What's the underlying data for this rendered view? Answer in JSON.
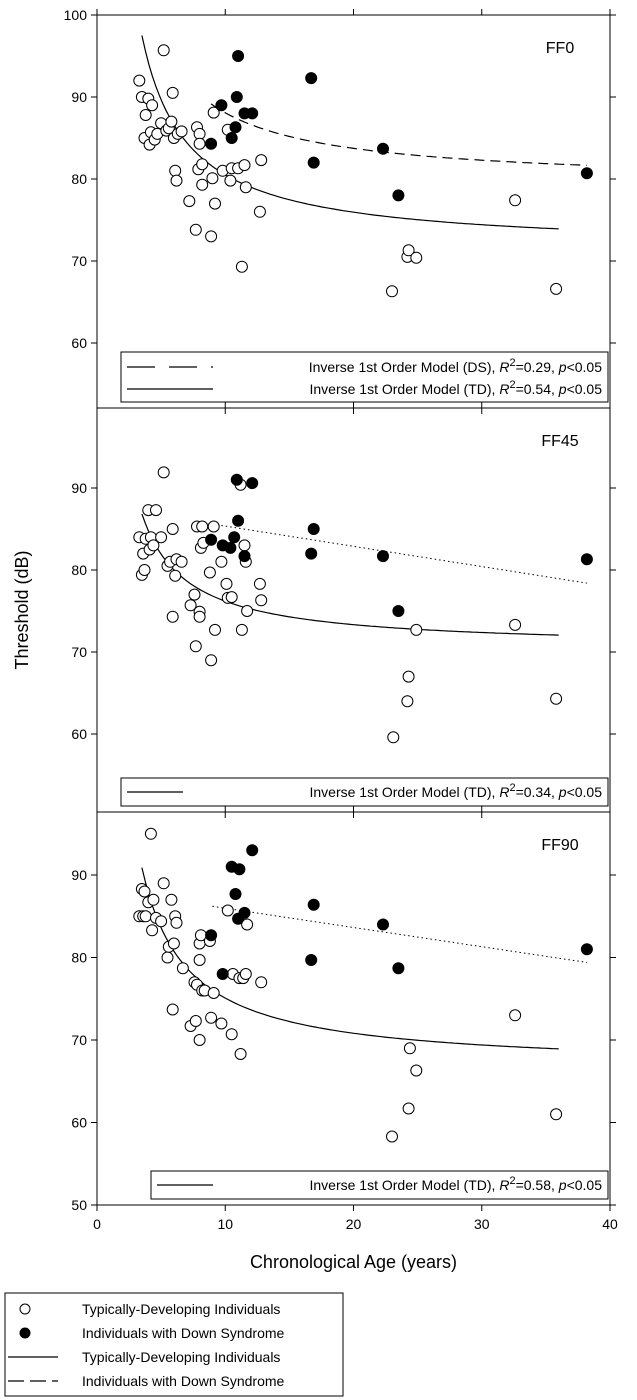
{
  "chart_data": {
    "type": "scatter",
    "ylabel": "Threshold (dB)",
    "xlabel": "Chronological Age (years)",
    "xlim": [
      0,
      40
    ],
    "x_ticks": [
      "0",
      "10",
      "20",
      "30",
      "40"
    ],
    "panels": [
      {
        "title": "FF0",
        "ylim": [
          50,
          100
        ],
        "y_ticks": [
          "100",
          "90",
          "80",
          "70",
          "60"
        ],
        "td_points": [
          [
            3.3,
            92.0
          ],
          [
            3.5,
            90.0
          ],
          [
            3.7,
            85.0
          ],
          [
            3.8,
            87.8
          ],
          [
            4.0,
            89.8
          ],
          [
            4.1,
            84.2
          ],
          [
            4.2,
            85.7
          ],
          [
            4.3,
            89.0
          ],
          [
            4.5,
            84.8
          ],
          [
            4.7,
            85.5
          ],
          [
            5.0,
            86.8
          ],
          [
            5.2,
            95.7
          ],
          [
            5.4,
            85.9
          ],
          [
            5.6,
            86.2
          ],
          [
            5.8,
            87.0
          ],
          [
            5.9,
            90.5
          ],
          [
            6.0,
            85.0
          ],
          [
            6.1,
            81.0
          ],
          [
            6.2,
            79.8
          ],
          [
            6.3,
            85.5
          ],
          [
            6.6,
            85.8
          ],
          [
            7.2,
            77.3
          ],
          [
            7.7,
            73.8
          ],
          [
            7.8,
            86.3
          ],
          [
            7.9,
            81.2
          ],
          [
            8.0,
            85.5
          ],
          [
            8.0,
            84.3
          ],
          [
            8.2,
            81.8
          ],
          [
            8.2,
            79.3
          ],
          [
            8.9,
            73.0
          ],
          [
            9.0,
            80.1
          ],
          [
            9.1,
            88.1
          ],
          [
            9.2,
            77.0
          ],
          [
            9.8,
            81.0
          ],
          [
            10.2,
            86.0
          ],
          [
            10.4,
            79.8
          ],
          [
            10.5,
            81.3
          ],
          [
            11.0,
            81.3
          ],
          [
            11.3,
            69.3
          ],
          [
            11.5,
            81.7
          ],
          [
            11.6,
            79.0
          ],
          [
            12.7,
            76.0
          ],
          [
            12.8,
            82.3
          ],
          [
            23.0,
            66.3
          ],
          [
            24.2,
            70.5
          ],
          [
            24.3,
            71.3
          ],
          [
            24.9,
            70.4
          ],
          [
            32.6,
            77.4
          ],
          [
            35.8,
            66.6
          ]
        ],
        "ds_points": [
          [
            8.9,
            84.3
          ],
          [
            9.7,
            89.0
          ],
          [
            10.5,
            85.0
          ],
          [
            10.8,
            86.3
          ],
          [
            10.9,
            90.0
          ],
          [
            11.0,
            95.0
          ],
          [
            11.5,
            88.0
          ],
          [
            12.1,
            88.0
          ],
          [
            16.7,
            92.3
          ],
          [
            16.9,
            82.0
          ],
          [
            22.3,
            83.7
          ],
          [
            23.5,
            78.0
          ],
          [
            38.2,
            80.7
          ]
        ],
        "fits": [
          {
            "model": "TD",
            "style": "solid",
            "x_range": [
              3.5,
              36
            ],
            "a": 71.38,
            "b": 91.4
          },
          {
            "model": "DS",
            "style": "dashed",
            "x_range": [
              8.9,
              38.2
            ],
            "a": 79.4,
            "b": 86.8
          }
        ],
        "legend": [
          {
            "style": "dashed",
            "label": "Inverse 1st Order Model (DS), ",
            "r2_label": "R",
            "r2_sup": "2",
            "r2_value": "=0.29, ",
            "p_label": "p",
            "p_value": "<0.05"
          },
          {
            "style": "solid",
            "label": "Inverse 1st Order Model (TD), ",
            "r2_label": "R",
            "r2_sup": "2",
            "r2_value": "=0.54, ",
            "p_label": "p",
            "p_value": "<0.05"
          }
        ]
      },
      {
        "title": "FF45",
        "ylim": [
          50,
          100
        ],
        "y_ticks": [
          "90",
          "80",
          "70",
          "60"
        ],
        "td_points": [
          [
            3.3,
            84.0
          ],
          [
            3.5,
            79.4
          ],
          [
            3.6,
            82.0
          ],
          [
            3.7,
            80.0
          ],
          [
            3.8,
            83.8
          ],
          [
            4.0,
            87.3
          ],
          [
            4.1,
            82.5
          ],
          [
            4.2,
            84.0
          ],
          [
            4.4,
            83.0
          ],
          [
            4.6,
            87.3
          ],
          [
            5.0,
            84.0
          ],
          [
            5.2,
            91.9
          ],
          [
            5.5,
            80.5
          ],
          [
            5.7,
            81.0
          ],
          [
            5.9,
            85.0
          ],
          [
            5.9,
            74.3
          ],
          [
            6.1,
            79.3
          ],
          [
            6.2,
            81.3
          ],
          [
            6.6,
            81.0
          ],
          [
            7.3,
            75.7
          ],
          [
            7.6,
            77.0
          ],
          [
            7.7,
            70.7
          ],
          [
            7.8,
            85.3
          ],
          [
            8.0,
            74.9
          ],
          [
            8.0,
            74.3
          ],
          [
            8.1,
            82.7
          ],
          [
            8.2,
            85.3
          ],
          [
            8.3,
            83.3
          ],
          [
            8.8,
            79.7
          ],
          [
            8.9,
            69.0
          ],
          [
            9.1,
            85.3
          ],
          [
            9.2,
            72.7
          ],
          [
            9.7,
            81.0
          ],
          [
            10.1,
            78.3
          ],
          [
            10.2,
            76.6
          ],
          [
            10.5,
            76.7
          ],
          [
            11.2,
            90.4
          ],
          [
            11.3,
            72.7
          ],
          [
            11.5,
            83.0
          ],
          [
            11.6,
            81.0
          ],
          [
            11.7,
            75.0
          ],
          [
            12.7,
            78.3
          ],
          [
            12.8,
            76.3
          ],
          [
            23.1,
            59.6
          ],
          [
            24.2,
            64.0
          ],
          [
            24.3,
            67.0
          ],
          [
            24.9,
            72.7
          ],
          [
            32.6,
            73.3
          ],
          [
            35.8,
            64.3
          ]
        ],
        "ds_points": [
          [
            8.9,
            83.7
          ],
          [
            9.8,
            83.0
          ],
          [
            10.4,
            82.7
          ],
          [
            10.7,
            84.0
          ],
          [
            10.9,
            91.0
          ],
          [
            11.0,
            86.0
          ],
          [
            11.5,
            81.7
          ],
          [
            12.1,
            90.6
          ],
          [
            16.7,
            82.0
          ],
          [
            16.9,
            85.0
          ],
          [
            22.3,
            81.7
          ],
          [
            23.5,
            75.0
          ],
          [
            38.2,
            81.3
          ]
        ],
        "fits": [
          {
            "model": "TD",
            "style": "solid",
            "x_range": [
              3.5,
              36
            ],
            "a": 70.47,
            "b": 57.3
          },
          {
            "model": "DS",
            "style": "dotted",
            "x_range": [
              9.0,
              38.2
            ],
            "line": [
              85.6,
              78.4
            ]
          }
        ],
        "legend": [
          {
            "style": "solid",
            "label": "Inverse 1st Order Model (TD), ",
            "r2_label": "R",
            "r2_sup": "2",
            "r2_value": "=0.34, ",
            "p_label": "p",
            "p_value": "<0.05"
          }
        ]
      },
      {
        "title": "FF90",
        "ylim": [
          50,
          100
        ],
        "y_ticks": [
          "90",
          "80",
          "70",
          "60",
          "50"
        ],
        "td_points": [
          [
            3.3,
            85.0
          ],
          [
            3.5,
            88.3
          ],
          [
            3.6,
            85.0
          ],
          [
            3.7,
            88.0
          ],
          [
            3.8,
            85.0
          ],
          [
            4.0,
            86.7
          ],
          [
            4.2,
            95.0
          ],
          [
            4.3,
            83.3
          ],
          [
            4.4,
            87.0
          ],
          [
            4.6,
            84.8
          ],
          [
            5.0,
            84.4
          ],
          [
            5.2,
            89.0
          ],
          [
            5.5,
            80.0
          ],
          [
            5.6,
            81.3
          ],
          [
            5.8,
            87.0
          ],
          [
            5.9,
            73.7
          ],
          [
            6.0,
            81.7
          ],
          [
            6.1,
            85.0
          ],
          [
            6.2,
            84.2
          ],
          [
            6.7,
            78.7
          ],
          [
            7.3,
            71.7
          ],
          [
            7.6,
            77.0
          ],
          [
            7.7,
            72.3
          ],
          [
            7.8,
            76.7
          ],
          [
            8.0,
            70.0
          ],
          [
            8.0,
            79.7
          ],
          [
            8.0,
            81.7
          ],
          [
            8.1,
            82.7
          ],
          [
            8.2,
            76.0
          ],
          [
            8.4,
            76.0
          ],
          [
            8.8,
            82.0
          ],
          [
            8.9,
            72.7
          ],
          [
            9.1,
            75.7
          ],
          [
            9.7,
            72.0
          ],
          [
            10.2,
            85.7
          ],
          [
            10.5,
            70.7
          ],
          [
            10.6,
            78.0
          ],
          [
            11.1,
            77.5
          ],
          [
            11.2,
            68.3
          ],
          [
            11.4,
            77.5
          ],
          [
            11.6,
            78.0
          ],
          [
            11.7,
            84.0
          ],
          [
            12.8,
            77.0
          ],
          [
            23.0,
            58.3
          ],
          [
            24.3,
            61.7
          ],
          [
            24.4,
            69.0
          ],
          [
            24.9,
            66.3
          ],
          [
            32.6,
            73.0
          ],
          [
            35.8,
            61.0
          ]
        ],
        "ds_points": [
          [
            8.9,
            82.7
          ],
          [
            9.8,
            78.0
          ],
          [
            10.5,
            91.0
          ],
          [
            10.8,
            87.7
          ],
          [
            11.1,
            90.7
          ],
          [
            11.0,
            84.7
          ],
          [
            11.5,
            85.4
          ],
          [
            12.1,
            93.0
          ],
          [
            16.7,
            79.7
          ],
          [
            16.9,
            86.4
          ],
          [
            22.3,
            84.0
          ],
          [
            23.5,
            78.7
          ],
          [
            38.2,
            81.0
          ]
        ],
        "fits": [
          {
            "model": "TD",
            "style": "solid",
            "x_range": [
              3.5,
              36
            ],
            "a": 66.56,
            "b": 85.2
          },
          {
            "model": "DS",
            "style": "dotted",
            "x_range": [
              9.0,
              38.2
            ],
            "line": [
              86.2,
              79.4
            ]
          }
        ],
        "legend": [
          {
            "style": "solid",
            "label": "Inverse 1st Order Model (TD), ",
            "r2_label": "R",
            "r2_sup": "2",
            "r2_value": "=0.58, ",
            "p_label": "p",
            "p_value": "<0.05"
          }
        ]
      }
    ],
    "legend": [
      {
        "marker": "open-circle",
        "label": "Typically-Developing Individuals"
      },
      {
        "marker": "filled-circle",
        "label": "Individuals with Down Syndrome"
      },
      {
        "marker": "solid-line",
        "label": "Typically-Developing Individuals"
      },
      {
        "marker": "dashed-line",
        "label": "Individuals with Down Syndrome"
      }
    ]
  }
}
